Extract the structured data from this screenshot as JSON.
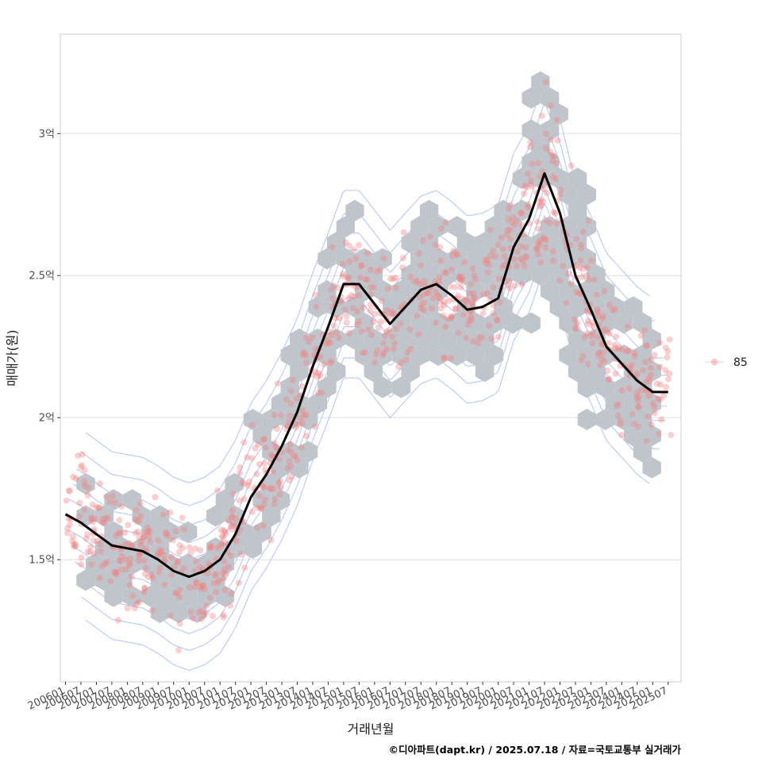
{
  "caption": "©디아파트(dapt.kr) / 2025.07.18 / 자료=국토교통부 실거래가",
  "colors": {
    "hex": "#c0c5cc",
    "point": "#f08080",
    "trend": "#000000",
    "contour": "#a9b8ef",
    "grid": "#dddddd",
    "panel_border": "#cccccc"
  },
  "chart_data": {
    "type": "scatter",
    "title": "",
    "xlabel": "거래년월",
    "ylabel": "매매가(원)",
    "x_tick_labels": [
      "200601",
      "200607",
      "200701",
      "200707",
      "200801",
      "200807",
      "200901",
      "200907",
      "201001",
      "201007",
      "201101",
      "201107",
      "201201",
      "201207",
      "201301",
      "201307",
      "201401",
      "201407",
      "201501",
      "201507",
      "201601",
      "201607",
      "201701",
      "201707",
      "201801",
      "201807",
      "201901",
      "201907",
      "202001",
      "202007",
      "202101",
      "202107",
      "202201",
      "202207",
      "202301",
      "202307",
      "202401",
      "202407",
      "202501",
      "202507"
    ],
    "xlim": [
      "2005-11",
      "2025-12"
    ],
    "y_ticks": [
      1.5,
      2.0,
      2.5,
      3.0
    ],
    "y_tick_labels": [
      "1.5억",
      "2억",
      "2.5억",
      "3억"
    ],
    "y_unit": "억원",
    "ylim": [
      1.07,
      3.35
    ],
    "grid": "horizontal major lines",
    "legend": {
      "position": "right",
      "entries": [
        "85"
      ]
    },
    "layers": [
      "hexbin density",
      "individual transactions (points)",
      "2D density contours",
      "moving-average trend line"
    ],
    "trend": {
      "x": [
        "2006-01",
        "2006-07",
        "2007-01",
        "2007-07",
        "2008-01",
        "2008-07",
        "2009-01",
        "2009-07",
        "2010-01",
        "2010-07",
        "2011-01",
        "2011-07",
        "2012-01",
        "2012-07",
        "2013-01",
        "2013-07",
        "2014-01",
        "2014-07",
        "2015-01",
        "2015-07",
        "2016-01",
        "2016-07",
        "2017-01",
        "2017-07",
        "2018-01",
        "2018-07",
        "2019-01",
        "2019-07",
        "2020-01",
        "2020-07",
        "2021-01",
        "2021-07",
        "2022-01",
        "2022-07",
        "2023-01",
        "2023-07",
        "2024-01",
        "2024-07",
        "2025-01",
        "2025-07"
      ],
      "y": [
        1.66,
        1.63,
        1.59,
        1.55,
        1.54,
        1.53,
        1.5,
        1.46,
        1.44,
        1.46,
        1.5,
        1.59,
        1.72,
        1.8,
        1.9,
        2.02,
        2.18,
        2.32,
        2.47,
        2.47,
        2.4,
        2.33,
        2.39,
        2.45,
        2.47,
        2.43,
        2.38,
        2.39,
        2.42,
        2.6,
        2.7,
        2.86,
        2.72,
        2.5,
        2.38,
        2.25,
        2.19,
        2.13,
        2.09,
        2.09
      ]
    }
  }
}
